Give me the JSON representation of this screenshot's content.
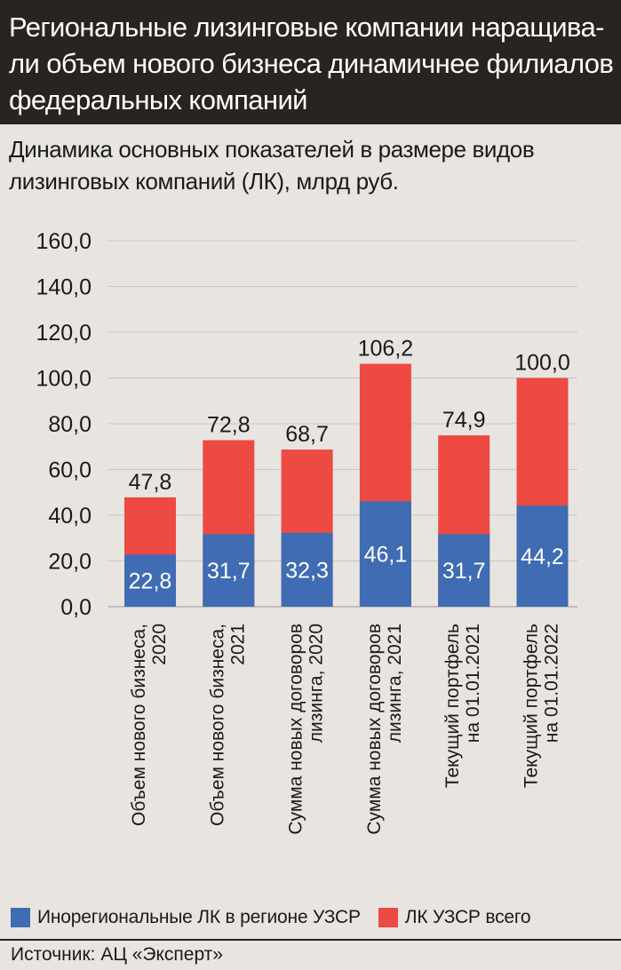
{
  "title_lines": [
    "Региональные лизинговые компании наращива-",
    "ли объем нового бизнеса динамичнее филиалов",
    "федеральных компаний"
  ],
  "subtitle_lines": [
    "Динамика основных показателей в размере видов",
    "лизинговых компаний (ЛК), млрд руб."
  ],
  "colors": {
    "blue": "#3f6cb3",
    "red": "#ec4a42",
    "grid": "#c9c6c2",
    "text": "#1a1a1a"
  },
  "chart_data": {
    "type": "bar",
    "stacked": true,
    "title": "Динамика основных показателей в размере видов лизинговых компаний (ЛК), млрд руб.",
    "categories": [
      [
        "Объем нового бизнеса,",
        "2020"
      ],
      [
        "Объем нового бизнеса,",
        "2021"
      ],
      [
        "Сумма новых договоров",
        "лизинга, 2020"
      ],
      [
        "Сумма новых договоров",
        "лизинга, 2021"
      ],
      [
        "Текущий портфель",
        "на 01.01.2021"
      ],
      [
        "Текущий портфель",
        "на 01.01.2022"
      ]
    ],
    "series": [
      {
        "name": "Инорегиональные ЛК в регионе УЗСР",
        "values": [
          22.8,
          31.7,
          32.3,
          46.1,
          31.7,
          44.2
        ],
        "labels": [
          "22,8",
          "31,7",
          "32,3",
          "46,1",
          "31,7",
          "44,2"
        ]
      },
      {
        "name": "ЛК УЗСР всего",
        "values": [
          47.8,
          72.8,
          68.7,
          106.2,
          74.9,
          100.0
        ],
        "labels": [
          "47,8",
          "72,8",
          "68,7",
          "106,2",
          "74,9",
          "100,0"
        ]
      }
    ],
    "y_ticks": [
      0,
      20,
      40,
      60,
      80,
      100,
      120,
      140,
      160
    ],
    "y_tick_labels": [
      "0,0",
      "20,0",
      "40,0",
      "60,0",
      "80,0",
      "100,0",
      "120,0",
      "140,0",
      "160,0"
    ],
    "ylim": [
      0,
      160
    ],
    "grid": true,
    "legend_position": "bottom"
  },
  "legend": [
    {
      "label": "Инорегиональные ЛК в регионе УЗСР",
      "color": "#3f6cb3"
    },
    {
      "label": "ЛК УЗСР всего",
      "color": "#ec4a42"
    }
  ],
  "source": "Источник: АЦ «Эксперт»"
}
